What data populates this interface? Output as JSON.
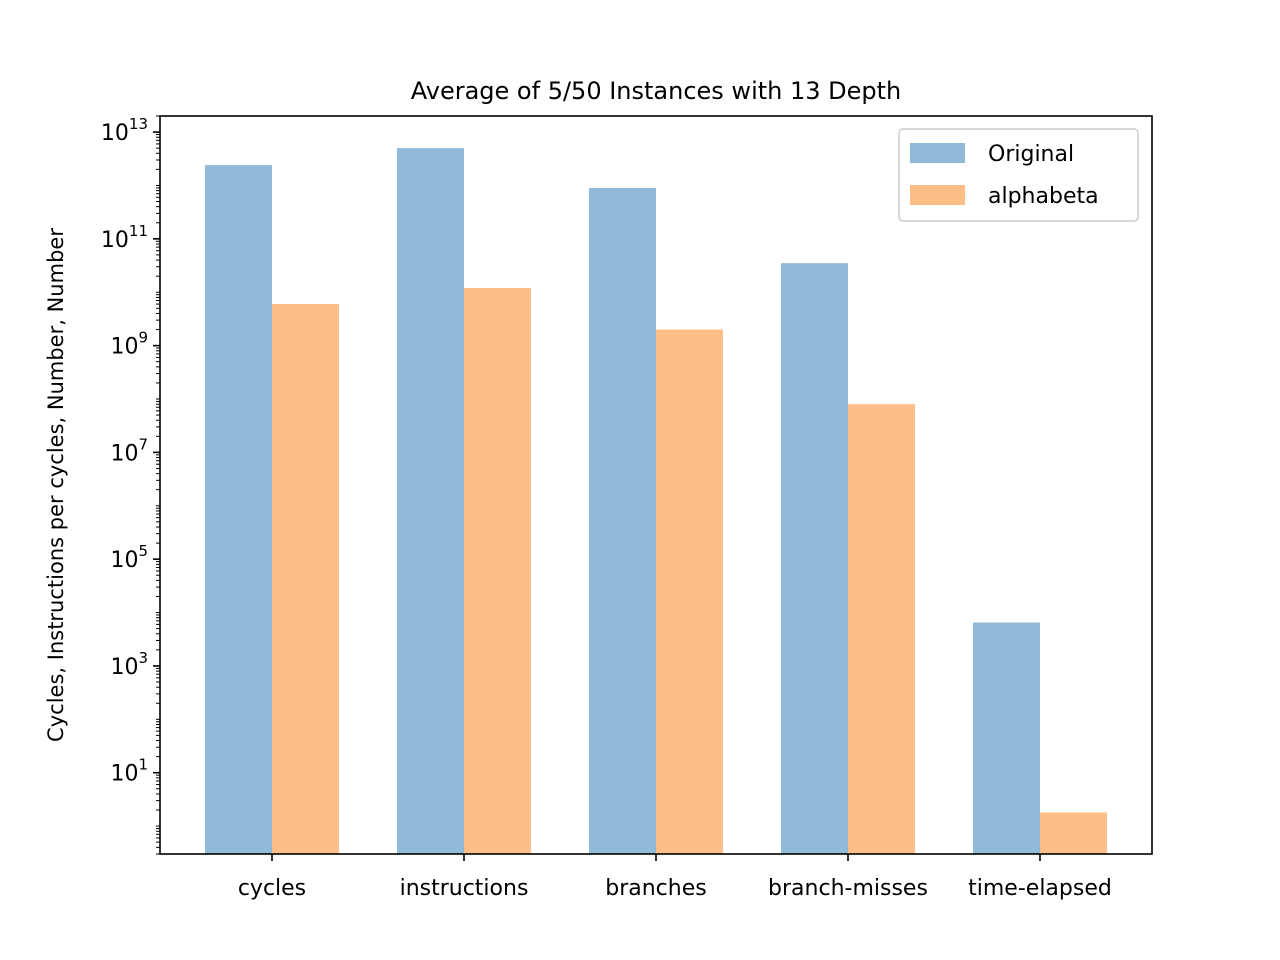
{
  "chart_data": {
    "type": "bar",
    "title": "Average of 5/50 Instances with 13 Depth",
    "xlabel": "",
    "ylabel": "Cycles, Instructions per cycles, Number, Number",
    "yscale": "log",
    "ylim": [
      0.3,
      20000000000000.0
    ],
    "ytick_values": [
      10,
      1000,
      100000,
      10000000,
      1000000000,
      100000000000,
      10000000000000
    ],
    "ytick_labels": [
      {
        "base": "10",
        "exp": "1"
      },
      {
        "base": "10",
        "exp": "3"
      },
      {
        "base": "10",
        "exp": "5"
      },
      {
        "base": "10",
        "exp": "7"
      },
      {
        "base": "10",
        "exp": "9"
      },
      {
        "base": "10",
        "exp": "11"
      },
      {
        "base": "10",
        "exp": "13"
      }
    ],
    "categories": [
      "cycles",
      "instructions",
      "branches",
      "branch-misses",
      "time-elapsed"
    ],
    "series": [
      {
        "name": "Original",
        "color": "#8fb9d7",
        "values": [
          2400000000000.0,
          5000000000000.0,
          900000000000.0,
          35000000000.0,
          6500
        ]
      },
      {
        "name": "alphabeta",
        "color": "#febe88",
        "values": [
          6000000000.0,
          12000000000.0,
          2000000000.0,
          80000000.0,
          1.8
        ]
      }
    ],
    "legend": {
      "position": "top-right"
    },
    "grid": false
  }
}
